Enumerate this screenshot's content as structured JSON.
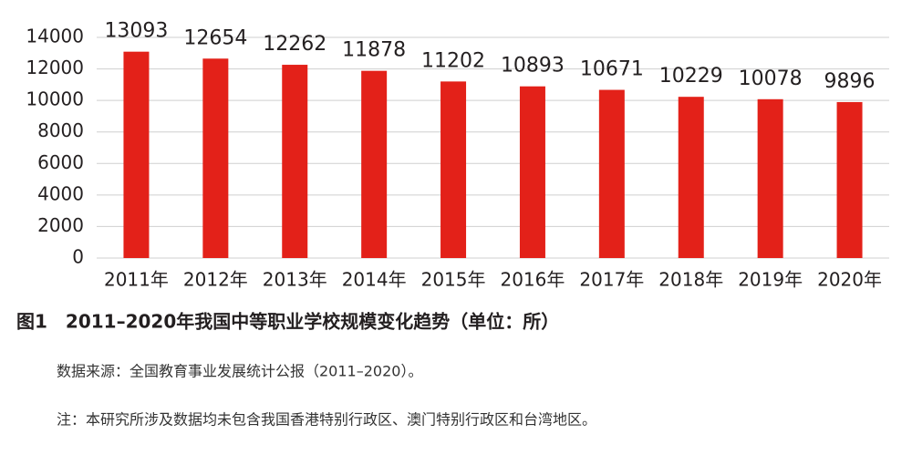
{
  "chart_data": {
    "type": "bar",
    "categories": [
      "2011年",
      "2012年",
      "2013年",
      "2014年",
      "2015年",
      "2016年",
      "2017年",
      "2018年",
      "2019年",
      "2020年"
    ],
    "values": [
      13093,
      12654,
      12262,
      11878,
      11202,
      10893,
      10671,
      10229,
      10078,
      9896
    ],
    "color": "#e32119",
    "ylim": [
      0,
      14000
    ],
    "yticks": [
      0,
      2000,
      4000,
      6000,
      8000,
      10000,
      12000,
      14000
    ],
    "grid": true,
    "caption": "图1　2011–2020年我国中等职业学校规模变化趋势（单位：所）",
    "source": "数据来源：全国教育事业发展统计公报（2011–2020）。",
    "note": "注：本研究所涉及数据均未包含我国香港特别行政区、澳门特别行政区和台湾地区。"
  }
}
